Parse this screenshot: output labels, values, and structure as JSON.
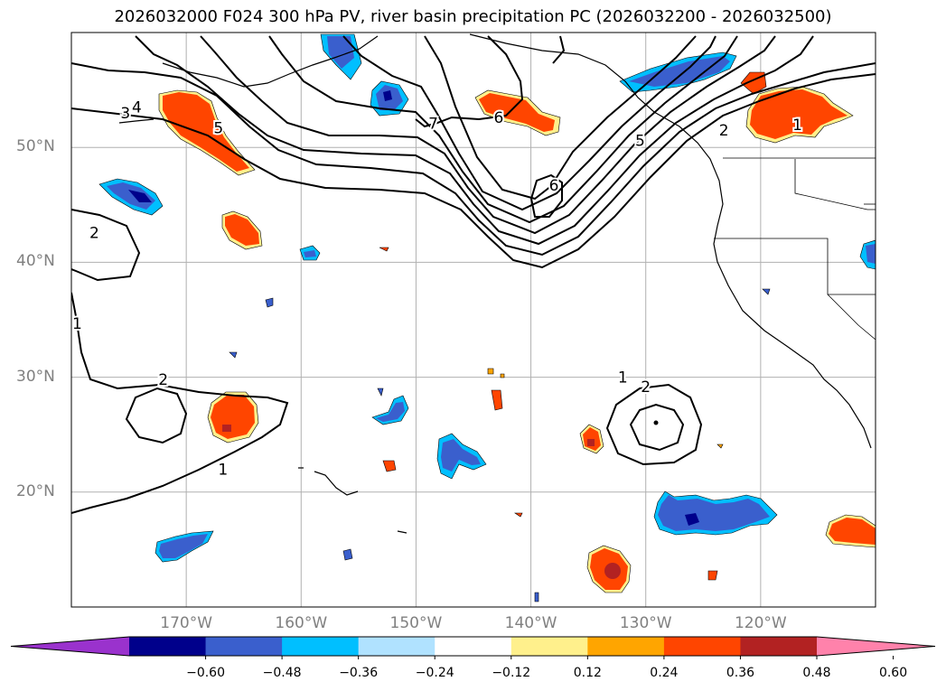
{
  "title": "2026032000 F024 300 hPa PV, river basin precipitation PC (2026032200 - 2026032500)",
  "map": {
    "lon_range": [
      -180,
      -110
    ],
    "lat_range": [
      10,
      60
    ],
    "lat_ticks": [
      {
        "value": 50,
        "label": "50°N"
      },
      {
        "value": 40,
        "label": "40°N"
      },
      {
        "value": 30,
        "label": "30°N"
      },
      {
        "value": 20,
        "label": "20°N"
      }
    ],
    "lon_ticks": [
      {
        "value": -170,
        "label": "170°W"
      },
      {
        "value": -160,
        "label": "160°W"
      },
      {
        "value": -150,
        "label": "150°W"
      },
      {
        "value": -140,
        "label": "140°W"
      },
      {
        "value": -130,
        "label": "130°W"
      },
      {
        "value": -120,
        "label": "120°W"
      }
    ],
    "grid": true,
    "contour_labels": [
      {
        "text": "3",
        "lon": -175.3,
        "lat": 53.0
      },
      {
        "text": "4",
        "lon": -174.3,
        "lat": 53.5
      },
      {
        "text": "5",
        "lon": -167.2,
        "lat": 51.7
      },
      {
        "text": "7",
        "lon": -148.5,
        "lat": 52.1
      },
      {
        "text": "6",
        "lon": -142.8,
        "lat": 52.6
      },
      {
        "text": "6",
        "lon": -138.0,
        "lat": 46.7
      },
      {
        "text": "5",
        "lon": -130.5,
        "lat": 50.6
      },
      {
        "text": "2",
        "lon": -123.2,
        "lat": 51.5
      },
      {
        "text": "1",
        "lon": -116.8,
        "lat": 52.0
      },
      {
        "text": "2",
        "lon": -178.0,
        "lat": 42.6
      },
      {
        "text": "1",
        "lon": -179.5,
        "lat": 34.7
      },
      {
        "text": "2",
        "lon": -172.0,
        "lat": 29.8
      },
      {
        "text": "1",
        "lon": -166.8,
        "lat": 22.0
      },
      {
        "text": "1",
        "lon": -132.0,
        "lat": 30.0
      },
      {
        "text": "2",
        "lon": -130.0,
        "lat": 29.2
      }
    ]
  },
  "colorbar": {
    "colors": [
      "#9a32cd",
      "#00008b",
      "#3a5fcd",
      "#00bfff",
      "#b0e2ff",
      "#ffffff",
      "#fff08c",
      "#ffa500",
      "#ff4500",
      "#b22222",
      "#ff82ab"
    ],
    "tick_labels": [
      "−0.60",
      "−0.48",
      "−0.36",
      "−0.24",
      "−0.12",
      "0.12",
      "0.24",
      "0.36",
      "0.48",
      "0.60"
    ]
  }
}
